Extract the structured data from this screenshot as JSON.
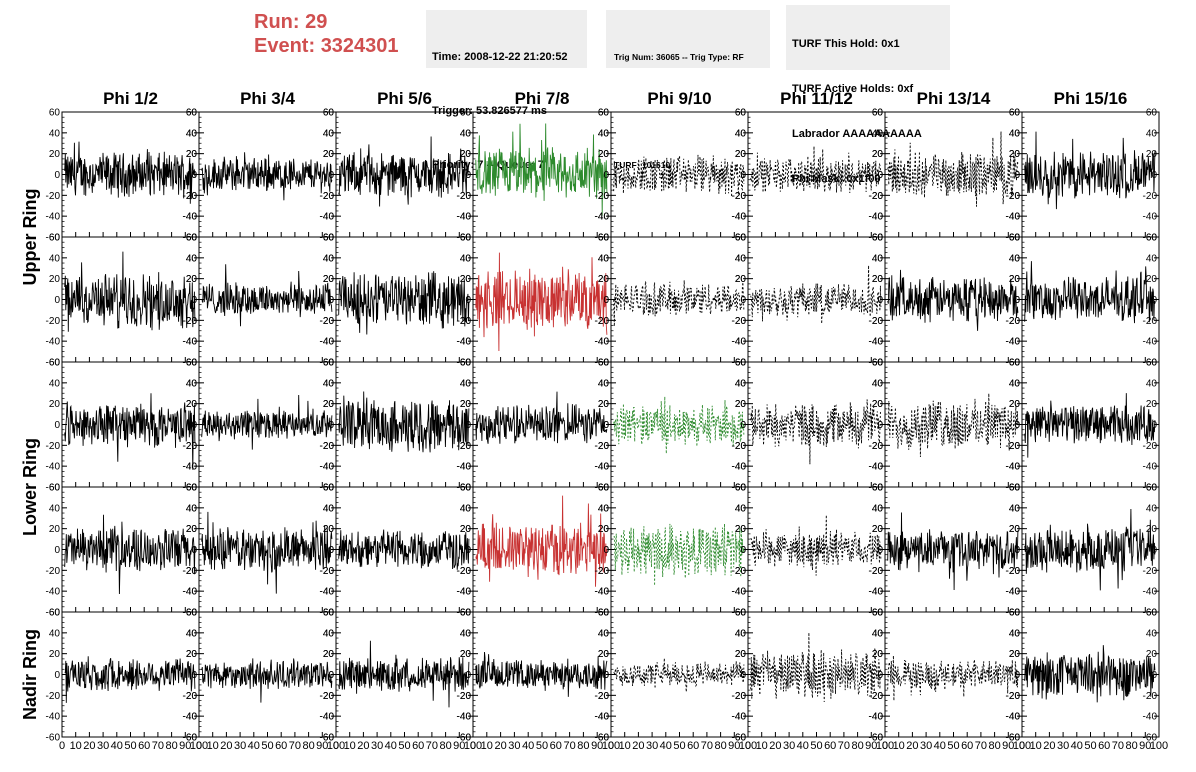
{
  "header": {
    "run_label": "Run:",
    "run_value": "29",
    "event_label": "Event:",
    "event_value": "3324301"
  },
  "info_boxes": [
    {
      "lines": [
        "Time: 2008-12-22 21:20:52",
        "Trigger: 53.826577 ms",
        "Priority: 7 -- Queue: 7"
      ]
    },
    {
      "lines": [
        "Trig Num: 36065 -- Trig Type: RF",
        "",
        "TURF: 101610"
      ]
    },
    {
      "lines": [
        "TURF This Hold: 0x1",
        "TURF Active Holds: 0xf",
        "Labrador AAAAAAAAAA",
        "Phi Mask: 0x1f00"
      ]
    }
  ],
  "chart_data": {
    "type": "line",
    "layout": "grid-8x5",
    "columns": [
      "Phi 1/2",
      "Phi 3/4",
      "Phi 5/6",
      "Phi 7/8",
      "Phi 9/10",
      "Phi 11/12",
      "Phi 13/14",
      "Phi 15/16"
    ],
    "row_group_labels": [
      "Upper Ring",
      "Lower Ring",
      "Nadir Ring"
    ],
    "xlim": [
      0,
      100
    ],
    "ylim": [
      -60,
      60
    ],
    "x_ticks": [
      "0",
      "10",
      "20",
      "30",
      "40",
      "50",
      "60",
      "70",
      "80",
      "90",
      "100"
    ],
    "y_ticks": [
      "60",
      "40",
      "20",
      "0",
      "-20",
      "-40",
      "-60"
    ],
    "grid": false,
    "colors": {
      "normal": "#000000",
      "green": "#2e8b2e",
      "red": "#c83232",
      "title": "#d05050"
    },
    "panel_styles": [
      [
        "solid",
        "solid",
        "solid",
        "green",
        "dashed",
        "dashed",
        "dashed",
        "solid"
      ],
      [
        "solid",
        "solid",
        "solid",
        "red",
        "dashed",
        "dashed",
        "solid",
        "solid"
      ],
      [
        "solid",
        "solid",
        "solid",
        "solid",
        "green-dashed",
        "dashed",
        "dashed",
        "solid"
      ],
      [
        "solid",
        "solid",
        "solid",
        "red",
        "green-dashed",
        "dashed",
        "solid",
        "solid"
      ],
      [
        "solid",
        "solid",
        "solid",
        "solid",
        "dashed",
        "dashed",
        "dashed",
        "solid"
      ]
    ],
    "panel_amplitudes": [
      [
        18,
        14,
        18,
        22,
        16,
        14,
        18,
        20
      ],
      [
        22,
        14,
        22,
        24,
        14,
        14,
        18,
        18
      ],
      [
        18,
        12,
        22,
        16,
        16,
        18,
        20,
        16
      ],
      [
        18,
        18,
        16,
        22,
        22,
        14,
        16,
        18
      ],
      [
        14,
        12,
        14,
        12,
        10,
        20,
        12,
        18
      ]
    ]
  }
}
